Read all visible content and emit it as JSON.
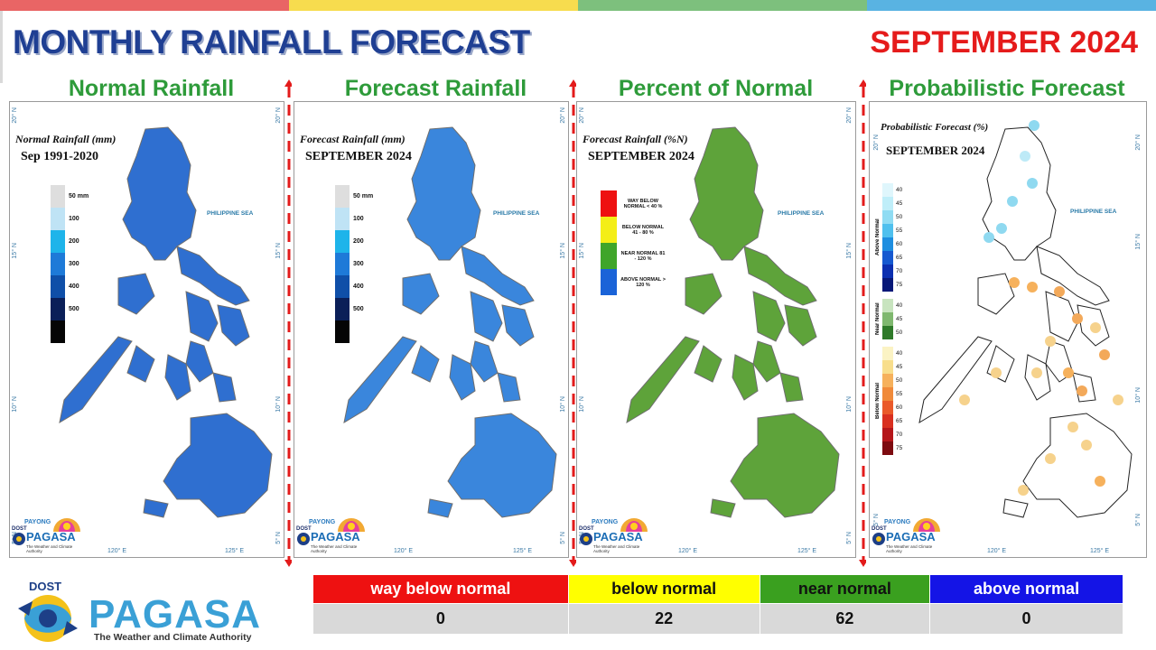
{
  "header": {
    "title": "MONTHLY RAINFALL FORECAST",
    "month": "SEPTEMBER 2024",
    "bar_colors": [
      "#e96565",
      "#f7dc4e",
      "#7dc07d",
      "#59b3e2"
    ]
  },
  "panels": [
    {
      "heading": "Normal Rainfall",
      "map_title": "Normal Rainfall (mm)",
      "map_subtitle": "Sep 1991-2020",
      "legend": {
        "items": [
          {
            "label": "50 mm",
            "color": "#dedede"
          },
          {
            "label": "100",
            "color": "#bfe3f5"
          },
          {
            "label": "200",
            "color": "#1eb4ea"
          },
          {
            "label": "300",
            "color": "#1e7ad8"
          },
          {
            "label": "400",
            "color": "#0f4fa8"
          },
          {
            "label": "500",
            "color": "#0a1f58"
          },
          {
            "label": "",
            "color": "#050505"
          }
        ]
      },
      "sea_label": "PHILIPPINE SEA",
      "map_fill": "#2f6fd0"
    },
    {
      "heading": "Forecast Rainfall",
      "map_title": "Forecast Rainfall (mm)",
      "map_subtitle": "SEPTEMBER 2024",
      "legend": {
        "items": [
          {
            "label": "50 mm",
            "color": "#dedede"
          },
          {
            "label": "100",
            "color": "#bfe3f5"
          },
          {
            "label": "200",
            "color": "#1eb4ea"
          },
          {
            "label": "300",
            "color": "#1e7ad8"
          },
          {
            "label": "400",
            "color": "#0f4fa8"
          },
          {
            "label": "500",
            "color": "#0a1f58"
          },
          {
            "label": "",
            "color": "#050505"
          }
        ]
      },
      "sea_label": "PHILIPPINE SEA",
      "map_fill": "#3a86dc"
    },
    {
      "heading": "Percent of Normal",
      "map_title": "Forecast Rainfall (%N)",
      "map_subtitle": "SEPTEMBER 2024",
      "legend": {
        "items": [
          {
            "label": "WAY BELOW NORMAL < 40 %",
            "color": "#ee1111"
          },
          {
            "label": "BELOW NORMAL 41 - 80 %",
            "color": "#f4ee17"
          },
          {
            "label": "NEAR NORMAL 81 - 120 %",
            "color": "#3fa52a"
          },
          {
            "label": "ABOVE NORMAL > 120 %",
            "color": "#1a63d8"
          }
        ]
      },
      "sea_label": "PHILIPPINE SEA",
      "map_fill": "#5ea33a"
    },
    {
      "heading": "Probabilistic Forecast",
      "map_title": "Probabilistic Forecast (%)",
      "map_subtitle": "SEPTEMBER 2024",
      "legend": {
        "groups": [
          {
            "name": "Above Normal",
            "ticks": [
              "40",
              "45",
              "50",
              "55",
              "60",
              "65",
              "70",
              "75"
            ]
          },
          {
            "name": "Near Normal",
            "ticks": [
              "40",
              "45",
              "50"
            ]
          },
          {
            "name": "Below Normal",
            "ticks": [
              "40",
              "45",
              "50",
              "55",
              "60",
              "65",
              "70",
              "75"
            ]
          }
        ]
      },
      "sea_label": "PHILIPPINE SEA",
      "map_fill": "#ffffff"
    }
  ],
  "coords": {
    "lat": [
      "20° N",
      "15° N",
      "10° N",
      "5° N"
    ],
    "lon": [
      "120° E",
      "125° E"
    ]
  },
  "mini_logo": {
    "dost": "DOST",
    "payong": "PAYONG",
    "name": "PAGASA",
    "tagline": "The Weather and Climate Authority"
  },
  "summary": {
    "categories": [
      {
        "label": "way below normal",
        "color": "#ee1111",
        "text_color": "#ffffff",
        "count": "0"
      },
      {
        "label": "below normal",
        "color": "#ffff00",
        "text_color": "#111111",
        "count": "22"
      },
      {
        "label": "near normal",
        "color": "#3aa01f",
        "text_color": "#111111",
        "count": "62"
      },
      {
        "label": "above normal",
        "color": "#1414e6",
        "text_color": "#ffffff",
        "count": "0"
      }
    ]
  },
  "footer_logo": {
    "dost": "DOST",
    "name": "PAGASA",
    "tagline": "The Weather and Climate Authority"
  }
}
